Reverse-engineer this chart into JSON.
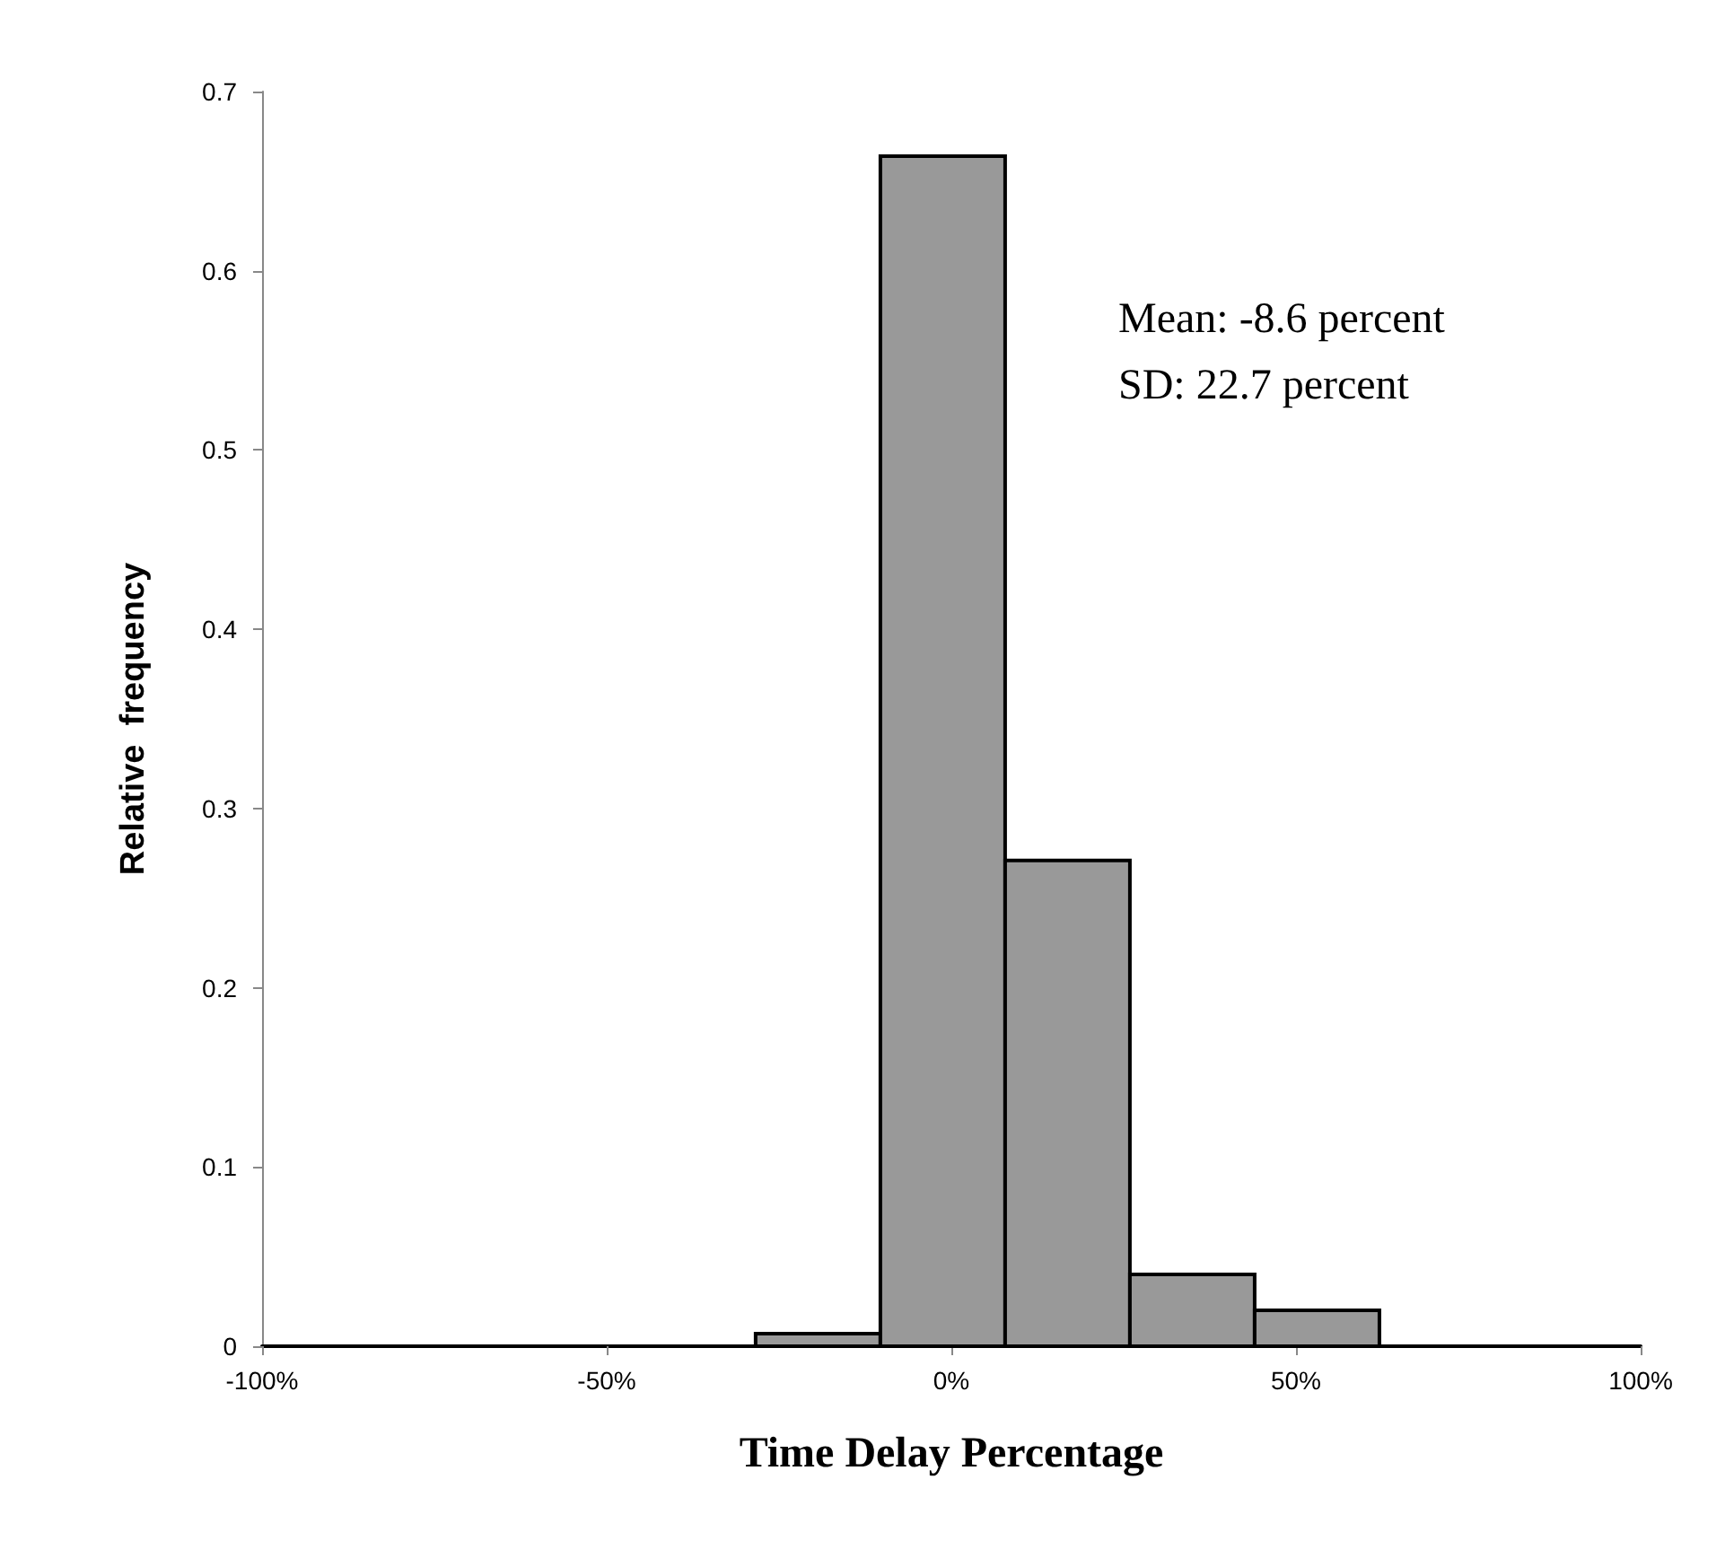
{
  "chart_data": {
    "type": "histogram",
    "xlabel": "Time Delay Percentage",
    "ylabel": "Relative  frequency",
    "bins": [
      -28.4,
      -10.3,
      7.8,
      25.9,
      44,
      62.1
    ],
    "values": [
      0.007,
      0.664,
      0.271,
      0.04,
      0.02
    ],
    "color": "#999999",
    "xlim": [
      -100,
      100
    ],
    "xticks": [
      {
        "value": -100,
        "label": "-100%"
      },
      {
        "value": -50,
        "label": "-50%"
      },
      {
        "value": 0,
        "label": "0%"
      },
      {
        "value": 50,
        "label": "50%"
      },
      {
        "value": 100,
        "label": "100%"
      }
    ],
    "ylim": [
      0,
      0.7
    ],
    "yticks": [
      0,
      0.1,
      0.2,
      0.3,
      0.4,
      0.5,
      0.6,
      0.7
    ],
    "annotations": [
      "Mean: -8.6 percent",
      "SD: 22.7 percent"
    ]
  }
}
